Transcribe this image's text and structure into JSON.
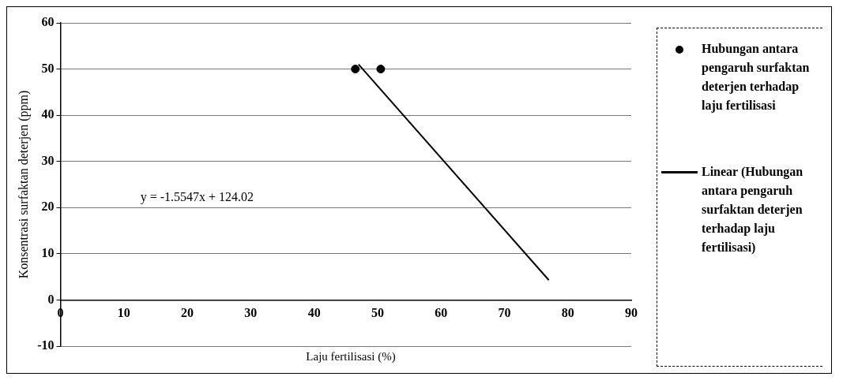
{
  "chart_data": {
    "type": "scatter",
    "xlabel": "Laju fertilisasi (%)",
    "ylabel": "Konsentrasi surfaktan deterjen (ppm)",
    "xlim": [
      0,
      90
    ],
    "xticks": [
      0,
      10,
      20,
      30,
      40,
      50,
      60,
      70,
      80,
      90
    ],
    "ylim": [
      -10,
      60
    ],
    "yticks": [
      -10,
      0,
      10,
      20,
      30,
      40,
      50,
      60
    ],
    "grid": "y",
    "legend": "right",
    "annotations": [
      "y = -1.5547x + 124.02"
    ],
    "series": [
      {
        "name": "Hubungan antara pengaruh surfaktan deterjen terhadap laju fertilisasi",
        "marker": "circle",
        "color": "#000000",
        "x": [
          46.5,
          50.5
        ],
        "values": [
          50,
          50
        ]
      },
      {
        "name": "Linear (Hubungan antara pengaruh surfaktan deterjen terhadap laju fertilisasi)",
        "type": "line",
        "color": "#000000",
        "x": [
          47,
          77
        ],
        "values": [
          51,
          4.3
        ]
      }
    ]
  }
}
